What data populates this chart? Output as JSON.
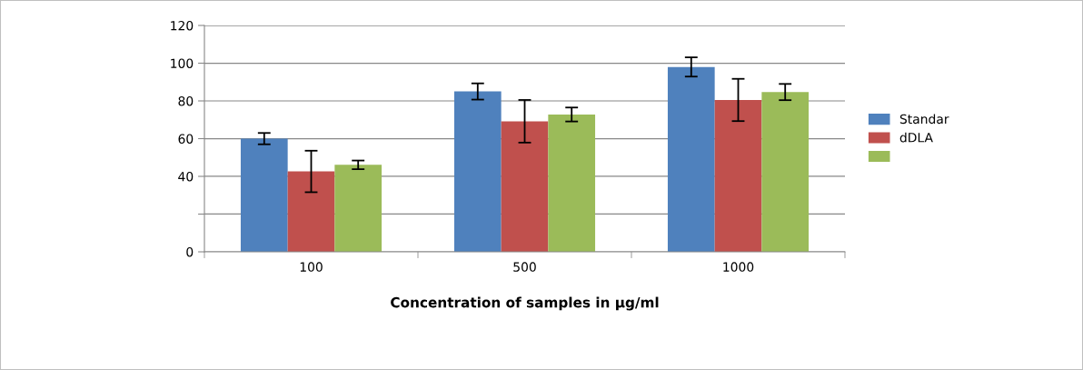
{
  "chart_data": {
    "type": "bar",
    "xlabel": "Concentration of samples in µg/ml",
    "categories": [
      "100",
      "500",
      "1000"
    ],
    "series": [
      {
        "name": "Standar",
        "color": "#4f81bd",
        "values": [
          60,
          85,
          98
        ],
        "errors": [
          3,
          4.3,
          5.1
        ]
      },
      {
        "name": "dDLA",
        "color": "#c0504d",
        "values": [
          42.6,
          69.2,
          80.5
        ],
        "errors": [
          11,
          11.3,
          11.2
        ]
      },
      {
        "color": "#9bbb59",
        "values": [
          46.1,
          72.8,
          84.7
        ],
        "errors": [
          2.3,
          3.7,
          4.3
        ]
      }
    ],
    "ylim": [
      0,
      120
    ],
    "yticks": [
      0,
      {
        "value": 20,
        "label": null
      },
      40,
      60,
      80,
      100,
      120
    ],
    "grid": "y",
    "legend": "right"
  }
}
